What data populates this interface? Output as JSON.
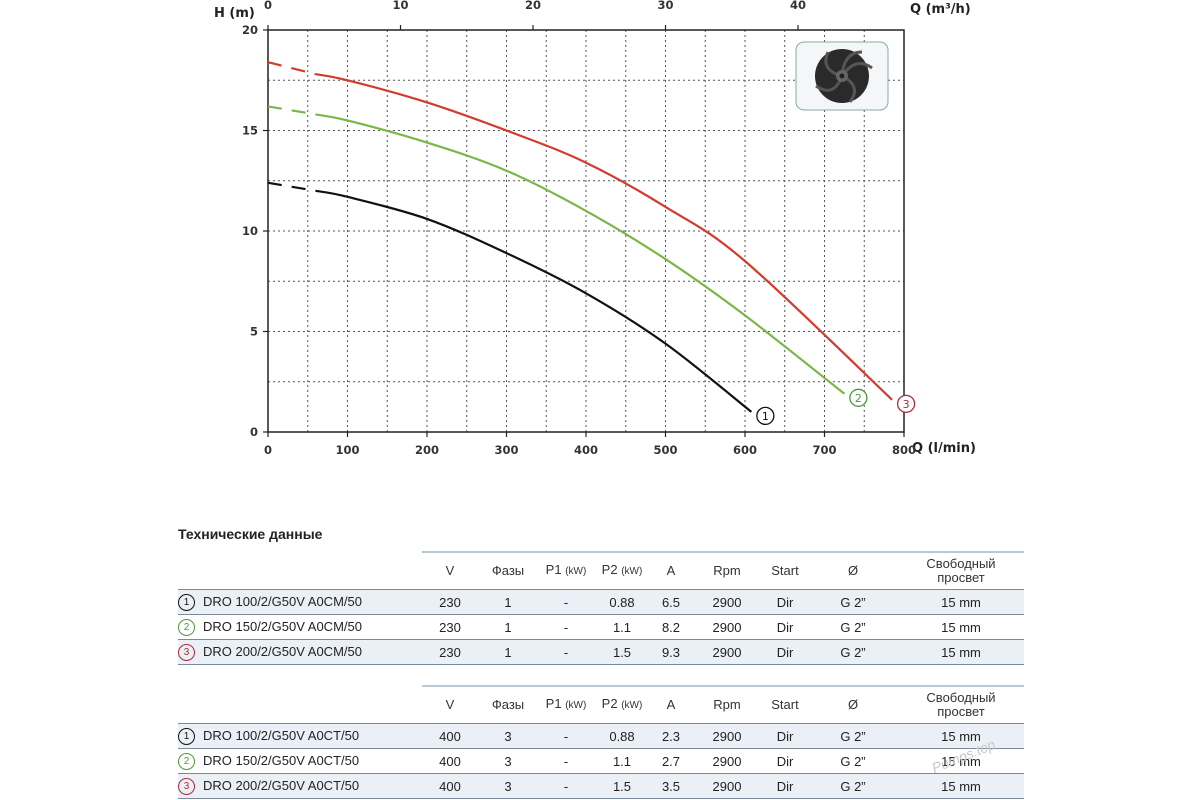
{
  "chart_data": {
    "type": "line",
    "xlabel": "Q (l/min)",
    "x2label": "Q (m³/h)",
    "ylabel": "H (m)",
    "xlim": [
      0,
      800
    ],
    "x2lim": [
      0,
      48
    ],
    "ylim": [
      0,
      20
    ],
    "x_ticks": [
      0,
      100,
      200,
      300,
      400,
      500,
      600,
      700,
      800
    ],
    "x2_ticks": [
      0,
      10,
      20,
      30,
      40
    ],
    "y_ticks": [
      0,
      5,
      10,
      15,
      20
    ],
    "grid": true,
    "series": [
      {
        "name": "1",
        "color": "#111111",
        "x": [
          0,
          60,
          100,
          200,
          300,
          400,
          500,
          608
        ],
        "y": [
          12.4,
          12.0,
          11.7,
          10.6,
          8.9,
          6.9,
          4.4,
          1.0
        ],
        "dashed_until": 60
      },
      {
        "name": "2",
        "color": "#7ab648",
        "x": [
          0,
          60,
          100,
          200,
          300,
          400,
          500,
          600,
          725
        ],
        "y": [
          16.2,
          15.8,
          15.5,
          14.4,
          13.0,
          11.0,
          8.6,
          5.8,
          1.9
        ],
        "dashed_until": 60
      },
      {
        "name": "3",
        "color": "#d33c2c",
        "x": [
          0,
          60,
          100,
          200,
          300,
          400,
          500,
          600,
          785
        ],
        "y": [
          18.4,
          17.8,
          17.5,
          16.4,
          15.0,
          13.4,
          11.2,
          8.5,
          1.6
        ],
        "dashed_until": 60
      }
    ],
    "inset_image": "impeller-photo"
  },
  "specs": {
    "title": "Технические данные",
    "header": [
      "V",
      "Фазы",
      "P1",
      "(kW)",
      "P2",
      "(kW)",
      "A",
      "Rpm",
      "Start",
      "Ø",
      "Свободный",
      "просвет"
    ],
    "table1": [
      {
        "num": "1",
        "color": "#111111",
        "model": "DRO 100/2/G50V A0CM/50",
        "v": "230",
        "phases": "1",
        "p1": "-",
        "p2": "0.88",
        "a": "6.5",
        "rpm": "2900",
        "start": "Dir",
        "dia": "G 2”",
        "clear": "15 mm"
      },
      {
        "num": "2",
        "color": "#4c9a3a",
        "model": "DRO 150/2/G50V A0CM/50",
        "v": "230",
        "phases": "1",
        "p1": "-",
        "p2": "1.1",
        "a": "8.2",
        "rpm": "2900",
        "start": "Dir",
        "dia": "G 2”",
        "clear": "15 mm"
      },
      {
        "num": "3",
        "color": "#b0283a",
        "model": "DRO 200/2/G50V A0CM/50",
        "v": "230",
        "phases": "1",
        "p1": "-",
        "p2": "1.5",
        "a": "9.3",
        "rpm": "2900",
        "start": "Dir",
        "dia": "G 2”",
        "clear": "15 mm"
      }
    ],
    "table2": [
      {
        "num": "1",
        "color": "#111111",
        "model": "DRO 100/2/G50V A0CT/50",
        "v": "400",
        "phases": "3",
        "p1": "-",
        "p2": "0.88",
        "a": "2.3",
        "rpm": "2900",
        "start": "Dir",
        "dia": "G 2”",
        "clear": "15 mm"
      },
      {
        "num": "2",
        "color": "#4c9a3a",
        "model": "DRO 150/2/G50V A0CT/50",
        "v": "400",
        "phases": "3",
        "p1": "-",
        "p2": "1.1",
        "a": "2.7",
        "rpm": "2900",
        "start": "Dir",
        "dia": "G 2”",
        "clear": "15 mm"
      },
      {
        "num": "3",
        "color": "#b0283a",
        "model": "DRO 200/2/G50V A0CT/50",
        "v": "400",
        "phases": "3",
        "p1": "-",
        "p2": "1.5",
        "a": "3.5",
        "rpm": "2900",
        "start": "Dir",
        "dia": "G 2”",
        "clear": "15 mm"
      }
    ]
  },
  "watermark": "Pumps.top"
}
